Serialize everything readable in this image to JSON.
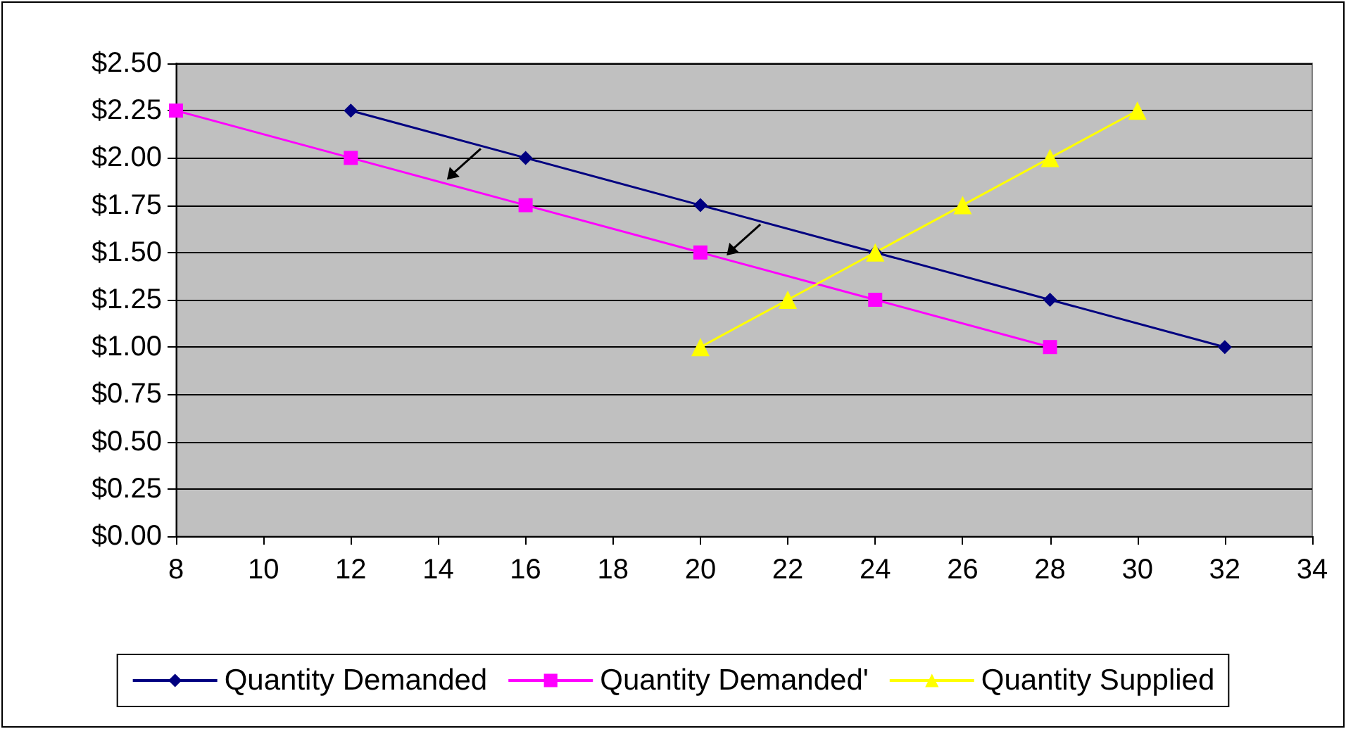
{
  "chart_data": {
    "type": "line",
    "xlim": [
      8,
      34
    ],
    "xticks": [
      8,
      10,
      12,
      14,
      16,
      18,
      20,
      22,
      24,
      26,
      28,
      30,
      32,
      34
    ],
    "ylim": [
      0,
      2.5
    ],
    "yticks": [
      {
        "value": 0,
        "label": "$0.00"
      },
      {
        "value": 0.25,
        "label": "$0.25"
      },
      {
        "value": 0.5,
        "label": "$0.50"
      },
      {
        "value": 0.75,
        "label": "$0.75"
      },
      {
        "value": 1,
        "label": "$1.00"
      },
      {
        "value": 1.25,
        "label": "$1.25"
      },
      {
        "value": 1.5,
        "label": "$1.50"
      },
      {
        "value": 1.75,
        "label": "$1.75"
      },
      {
        "value": 2,
        "label": "$2.00"
      },
      {
        "value": 2.25,
        "label": "$2.25"
      },
      {
        "value": 2.5,
        "label": "$2.50"
      }
    ],
    "grid": "y",
    "legend": "bottom",
    "line_style": "solid",
    "series": [
      {
        "name": "Quantity Demanded",
        "color": "#000080",
        "marker": "diamond",
        "x": [
          12,
          16,
          20,
          24,
          28,
          32
        ],
        "values": [
          2.25,
          2.0,
          1.75,
          1.5,
          1.25,
          1.0
        ]
      },
      {
        "name": "Quantity Demanded'",
        "color": "#ff00ff",
        "marker": "square",
        "x": [
          8,
          12,
          16,
          20,
          24,
          28
        ],
        "values": [
          2.25,
          2.0,
          1.75,
          1.5,
          1.25,
          1.0
        ]
      },
      {
        "name": "Quantity Supplied",
        "color": "#ffff00",
        "marker": "triangle",
        "x": [
          20,
          22,
          24,
          26,
          28,
          30
        ],
        "values": [
          1.0,
          1.25,
          1.5,
          1.75,
          2.0,
          2.25
        ]
      }
    ]
  }
}
